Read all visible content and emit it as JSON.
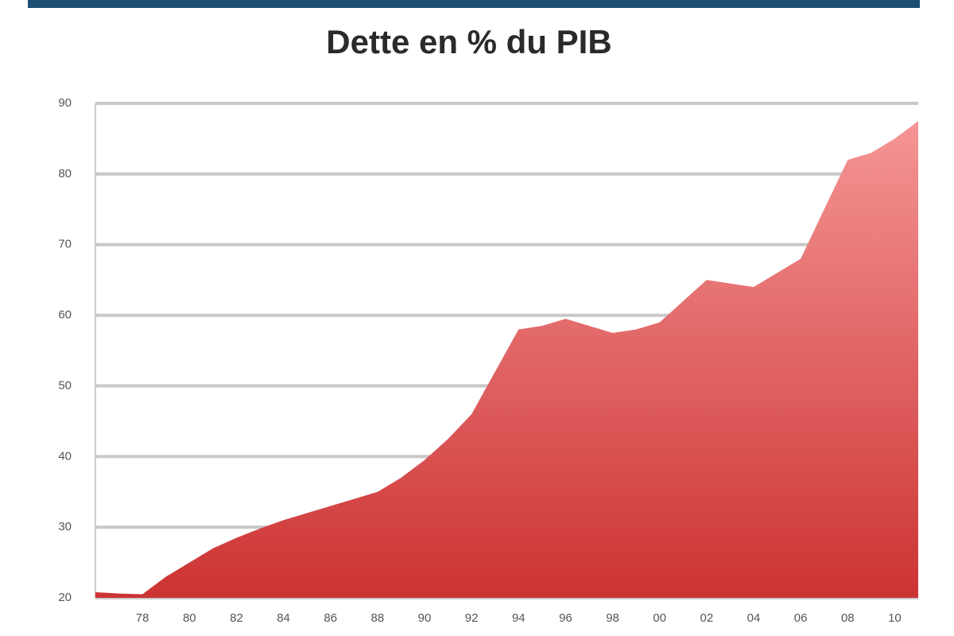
{
  "chart_data": {
    "type": "area",
    "title": "Dette en % du PIB",
    "categories": [
      null,
      null,
      "78",
      null,
      "80",
      null,
      "82",
      null,
      "84",
      null,
      "86",
      null,
      "88",
      null,
      "90",
      null,
      "92",
      null,
      "94",
      null,
      "96",
      null,
      "98",
      null,
      "00",
      null,
      "02",
      null,
      "04",
      null,
      "06",
      null,
      "08",
      null,
      "10",
      null
    ],
    "values": [
      20.8,
      20.6,
      20.5,
      23,
      25,
      27,
      28.5,
      29.8,
      31,
      32,
      33,
      34,
      35,
      37,
      39.5,
      42.5,
      46,
      52,
      58,
      58.5,
      59.5,
      58.5,
      57.5,
      58,
      59,
      62,
      65,
      64.5,
      64,
      66,
      68,
      75,
      82,
      83,
      85,
      87.5
    ],
    "color": "#cc3333",
    "top_color": "#f59595",
    "ylim": [
      20,
      90
    ],
    "yticks": [
      20,
      30,
      40,
      50,
      60,
      70,
      80,
      90
    ],
    "grid": true
  }
}
